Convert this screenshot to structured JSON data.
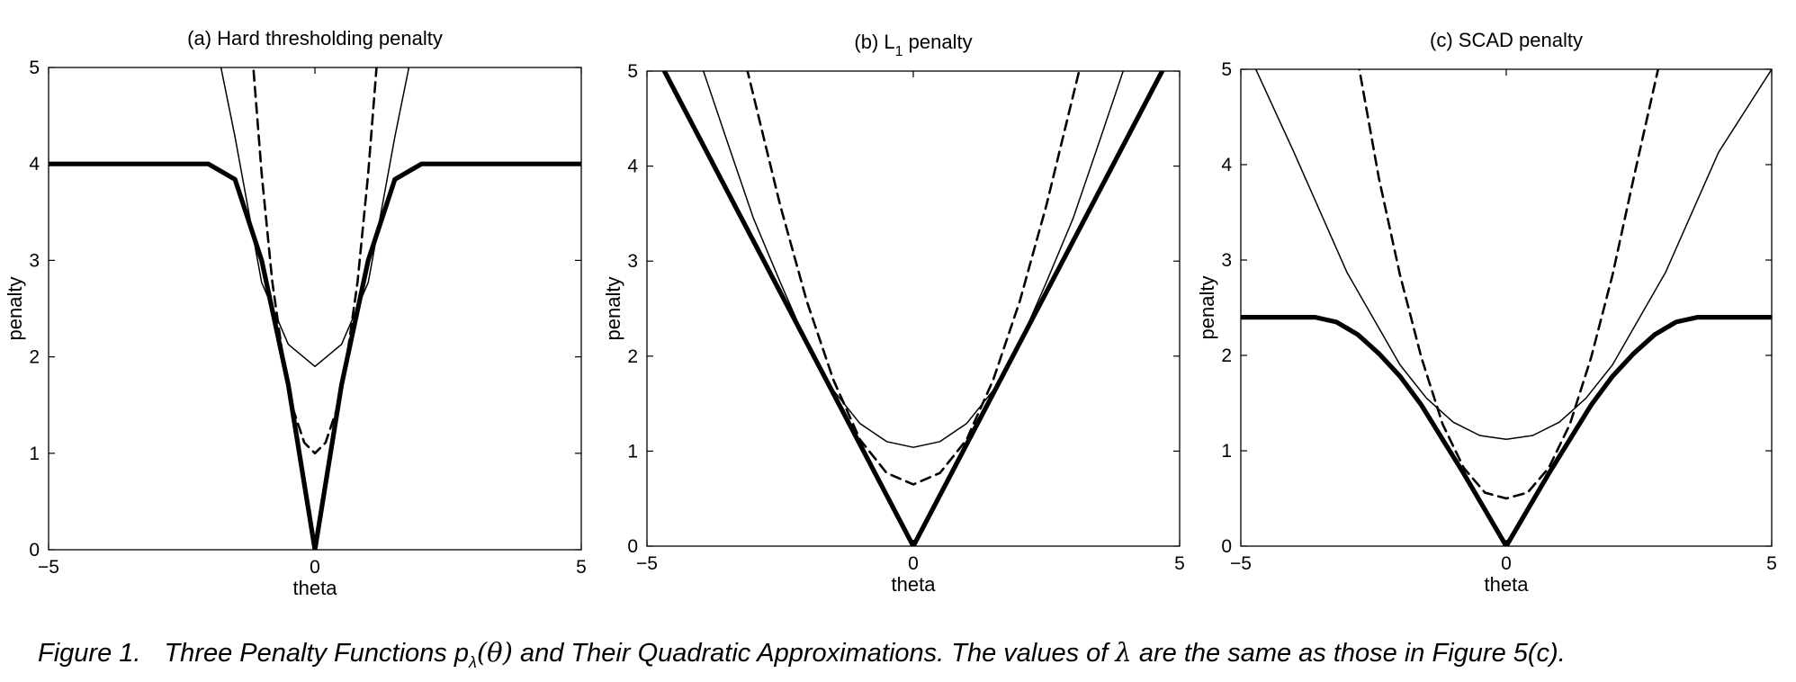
{
  "chart_data": [
    {
      "type": "line",
      "title": "(a) Hard thresholding penalty",
      "xlabel": "theta",
      "ylabel": "penalty",
      "xlim": [
        -5,
        5
      ],
      "ylim": [
        0,
        5
      ],
      "xticks": [
        "−5",
        "0",
        "5"
      ],
      "yticks": [
        "0",
        "1",
        "2",
        "3",
        "4",
        "5"
      ],
      "grid": false,
      "series": [
        {
          "style": "thick-solid",
          "x": [
            -5,
            -4,
            -3,
            -2,
            -1.5,
            -1,
            -0.5,
            0,
            0.5,
            1,
            1.5,
            2,
            3,
            4,
            5
          ],
          "y": [
            4,
            4,
            4,
            4,
            3.84,
            3.0,
            1.71,
            0,
            1.71,
            3.0,
            3.84,
            4,
            4,
            4,
            4
          ]
        },
        {
          "style": "dashed",
          "x": [
            -1.2,
            -1,
            -0.8,
            -0.6,
            -0.4,
            -0.2,
            0,
            0.2,
            0.4,
            0.6,
            0.8,
            1,
            1.2
          ],
          "y": [
            5.3,
            3.9,
            2.78,
            1.99,
            1.44,
            1.11,
            1.0,
            1.11,
            1.44,
            1.99,
            2.78,
            3.9,
            5.3
          ]
        },
        {
          "style": "thin-solid",
          "x": [
            -1.8,
            -1.5,
            -1.0,
            -0.5,
            0,
            0.5,
            1.0,
            1.5,
            1.8
          ],
          "y": [
            5.1,
            4.28,
            2.77,
            2.13,
            1.9,
            2.13,
            2.77,
            4.28,
            5.1
          ]
        }
      ]
    },
    {
      "type": "line",
      "title": "(b) L",
      "title_sub": "1",
      "title_suffix": " penalty",
      "xlabel": "theta",
      "ylabel": "penalty",
      "xlim": [
        -5,
        5
      ],
      "ylim": [
        0,
        5
      ],
      "xticks": [
        "−5",
        "0",
        "5"
      ],
      "yticks": [
        "0",
        "1",
        "2",
        "3",
        "4",
        "5"
      ],
      "grid": false,
      "series": [
        {
          "style": "thick-solid",
          "x": [
            -5,
            0,
            5
          ],
          "y": [
            5.35,
            0,
            5.35
          ]
        },
        {
          "style": "dashed",
          "x": [
            -3.2,
            -2.5,
            -2,
            -1.5,
            -1,
            -0.5,
            0,
            0.5,
            1,
            1.5,
            2,
            2.5,
            3.2
          ],
          "y": [
            5.2,
            3.59,
            2.58,
            1.75,
            1.12,
            0.77,
            0.65,
            0.77,
            1.12,
            1.75,
            2.58,
            3.59,
            5.2
          ]
        },
        {
          "style": "thin-solid",
          "x": [
            -4.0,
            -3.5,
            -3,
            -2.5,
            -2,
            -1.5,
            -1,
            -0.5,
            0,
            0.5,
            1,
            1.5,
            2,
            2.5,
            3,
            3.5,
            4.0
          ],
          "y": [
            5.1,
            4.27,
            3.45,
            2.78,
            2.14,
            1.64,
            1.29,
            1.1,
            1.04,
            1.1,
            1.29,
            1.64,
            2.14,
            2.78,
            3.45,
            4.27,
            5.1
          ]
        }
      ]
    },
    {
      "type": "line",
      "title": "(c) SCAD penalty",
      "xlabel": "theta",
      "ylabel": "penalty",
      "xlim": [
        -5,
        5
      ],
      "ylim": [
        0,
        5
      ],
      "xticks": [
        "−5",
        "0",
        "5"
      ],
      "yticks": [
        "0",
        "1",
        "2",
        "3",
        "4",
        "5"
      ],
      "grid": false,
      "series": [
        {
          "style": "thick-solid",
          "x": [
            -5,
            -3.6,
            -3.2,
            -2.8,
            -2.4,
            -2.0,
            -1.6,
            -1.2,
            -0.8,
            -0.4,
            0,
            0.4,
            0.8,
            1.2,
            1.6,
            2.0,
            2.4,
            2.8,
            3.2,
            3.6,
            5
          ],
          "y": [
            2.4,
            2.4,
            2.35,
            2.22,
            2.02,
            1.78,
            1.48,
            1.12,
            0.76,
            0.38,
            0,
            0.38,
            0.76,
            1.12,
            1.48,
            1.78,
            2.02,
            2.22,
            2.35,
            2.4,
            2.4
          ]
        },
        {
          "style": "dashed",
          "x": [
            -2.8,
            -2.4,
            -2.0,
            -1.6,
            -1.2,
            -0.8,
            -0.4,
            0,
            0.4,
            0.8,
            1.2,
            1.6,
            2.0,
            2.4,
            2.9
          ],
          "y": [
            5.1,
            3.86,
            2.84,
            1.98,
            1.28,
            0.82,
            0.56,
            0.5,
            0.56,
            0.82,
            1.28,
            1.98,
            2.84,
            3.86,
            5.1
          ]
        },
        {
          "style": "thin-solid",
          "x": [
            -4.8,
            -4,
            -3,
            -2,
            -1.5,
            -1,
            -0.5,
            0,
            0.5,
            1,
            1.5,
            2,
            3,
            4,
            5
          ],
          "y": [
            5.1,
            4.13,
            2.87,
            1.9,
            1.55,
            1.3,
            1.16,
            1.12,
            1.16,
            1.3,
            1.55,
            1.9,
            2.87,
            4.13,
            5.0
          ]
        }
      ]
    }
  ],
  "caption": {
    "number": "Figure 1.",
    "text_before": "Three Penalty Functions ",
    "func": "p",
    "func_sub": "λ",
    "func_arg": "(θ)",
    "text_middle": " and Their Quadratic Approximations. The values of ",
    "lambda": "λ",
    "text_after": " are the same as those in Figure 5(c)."
  }
}
